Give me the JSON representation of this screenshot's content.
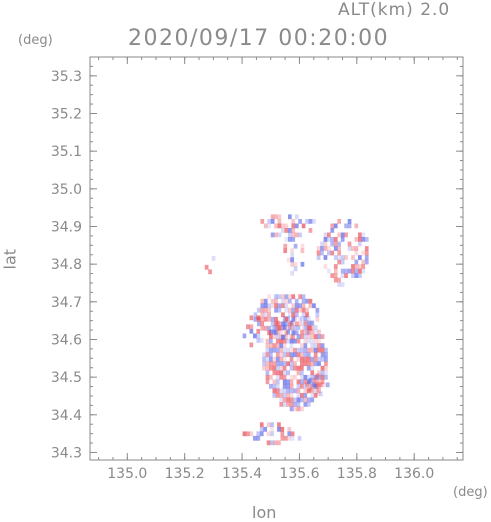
{
  "header": {
    "alt_label": "ALT(km) 2.0",
    "timestamp": "2020/09/17 00:20:00"
  },
  "chart_data": {
    "type": "heatmap",
    "title": "2020/09/17 00:20:00",
    "xlabel": "lon",
    "ylabel": "lat",
    "xunit": "(deg)",
    "yunit": "(deg)",
    "xlim": [
      134.87,
      136.17
    ],
    "ylim": [
      34.28,
      35.35
    ],
    "x_ticks": [
      "135.0",
      "135.2",
      "135.4",
      "135.6",
      "135.8",
      "136.0"
    ],
    "y_ticks": [
      "34.3",
      "34.4",
      "34.5",
      "34.6",
      "34.7",
      "34.8",
      "34.9",
      "35.0",
      "35.1",
      "35.2",
      "35.3"
    ],
    "grid": false,
    "colors": {
      "positive": "#e8505a",
      "negative": "#5a64e6",
      "axis": "#8a8a8a"
    },
    "regions": [
      {
        "name": "south_arc",
        "lon": [
          135.39,
          135.63
        ],
        "lat": [
          34.32,
          34.37
        ],
        "density": 0.45
      },
      {
        "name": "main_body",
        "lon": [
          135.47,
          135.69
        ],
        "lat": [
          34.41,
          34.66
        ],
        "density": 0.8
      },
      {
        "name": "main_upper",
        "lon": [
          135.44,
          135.66
        ],
        "lat": [
          34.6,
          34.72
        ],
        "density": 0.7
      },
      {
        "name": "east_lobe",
        "lon": [
          135.62,
          135.71
        ],
        "lat": [
          34.45,
          34.5
        ],
        "density": 0.6
      },
      {
        "name": "west_patch",
        "lon": [
          135.39,
          135.48
        ],
        "lat": [
          34.58,
          34.66
        ],
        "density": 0.35
      },
      {
        "name": "north_arc",
        "lon": [
          135.44,
          135.67
        ],
        "lat": [
          34.86,
          34.93
        ],
        "density": 0.4
      },
      {
        "name": "north_east",
        "lon": [
          135.66,
          135.84
        ],
        "lat": [
          34.74,
          34.91
        ],
        "density": 0.5
      },
      {
        "name": "north_mid",
        "lon": [
          135.52,
          135.62
        ],
        "lat": [
          34.77,
          34.86
        ],
        "density": 0.35
      },
      {
        "name": "north_west",
        "lon": [
          135.27,
          135.3
        ],
        "lat": [
          34.75,
          34.82
        ],
        "density": 0.4
      }
    ]
  }
}
